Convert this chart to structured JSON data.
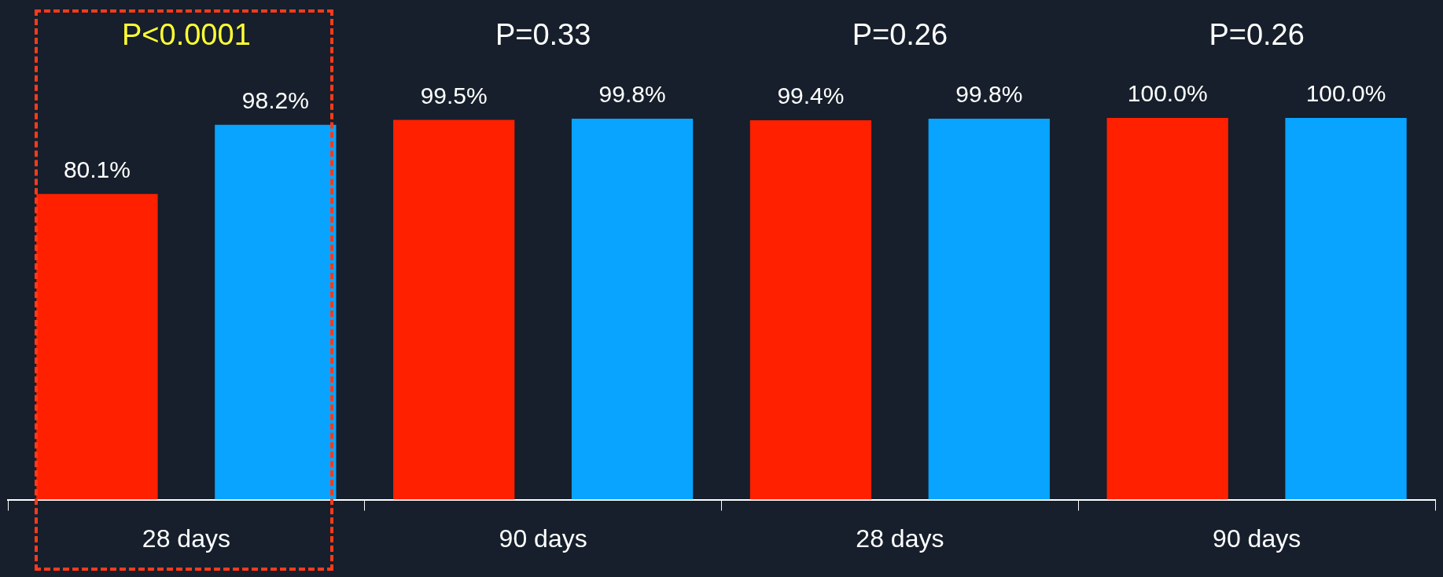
{
  "chart_data": {
    "type": "bar",
    "categories": [
      "28 days",
      "90 days",
      "28 days",
      "90 days"
    ],
    "series": [
      {
        "color": "#ff2000",
        "values": [
          80.1,
          99.5,
          99.4,
          100.0
        ],
        "value_labels": [
          "80.1%",
          "99.5%",
          "99.4%",
          "100.0%"
        ]
      },
      {
        "color": "#08a4ff",
        "values": [
          98.2,
          99.8,
          99.8,
          100.0
        ],
        "value_labels": [
          "98.2%",
          "99.8%",
          "99.8%",
          "100.0%"
        ]
      }
    ],
    "annotations": [
      "P<0.0001",
      "P=0.33",
      "P=0.26",
      "P=0.26"
    ],
    "tick_labels": "x",
    "grid": false,
    "legend": false
  }
}
